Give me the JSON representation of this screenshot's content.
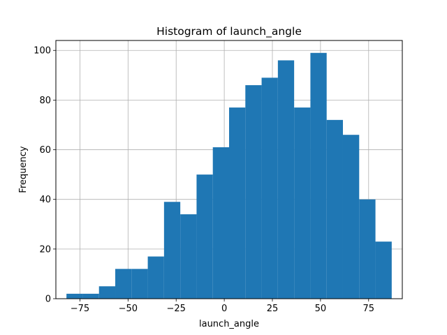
{
  "chart_data": {
    "type": "bar",
    "title": "Histogram of launch_angle",
    "xlabel": "launch_angle",
    "ylabel": "Frequency",
    "bin_start": -82.0,
    "bin_width": 8.45,
    "counts": [
      2,
      2,
      5,
      12,
      12,
      17,
      39,
      34,
      50,
      61,
      77,
      86,
      89,
      96,
      77,
      99,
      72,
      66,
      40,
      23
    ],
    "xlim": [
      -87.5,
      92.5
    ],
    "ylim": [
      0,
      104
    ],
    "x_ticks": [
      -75,
      -50,
      -25,
      0,
      25,
      50,
      75
    ],
    "x_tick_labels": [
      "−75",
      "−50",
      "−25",
      "0",
      "25",
      "50",
      "75"
    ],
    "y_ticks": [
      0,
      20,
      40,
      60,
      80,
      100
    ],
    "y_tick_labels": [
      "0",
      "20",
      "40",
      "60",
      "80",
      "100"
    ],
    "grid": true,
    "bar_color": "#1f77b4",
    "grid_color": "#b0b0b0"
  }
}
